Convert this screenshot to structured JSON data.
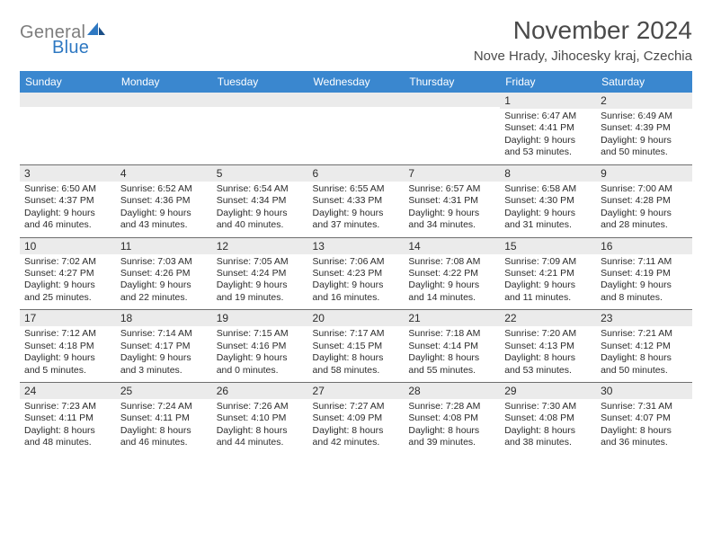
{
  "logo": {
    "word1": "General",
    "word2": "Blue"
  },
  "title": "November 2024",
  "location": "Nove Hrady, Jihocesky kraj, Czechia",
  "header_bg": "#3a87cf",
  "grid_bg": "#ebebeb",
  "text_color": "#2b2b2b",
  "weekdays": [
    "Sunday",
    "Monday",
    "Tuesday",
    "Wednesday",
    "Thursday",
    "Friday",
    "Saturday"
  ],
  "weeks": [
    [
      null,
      null,
      null,
      null,
      null,
      {
        "d": "1",
        "sr": "Sunrise: 6:47 AM",
        "ss": "Sunset: 4:41 PM",
        "dl1": "Daylight: 9 hours",
        "dl2": "and 53 minutes."
      },
      {
        "d": "2",
        "sr": "Sunrise: 6:49 AM",
        "ss": "Sunset: 4:39 PM",
        "dl1": "Daylight: 9 hours",
        "dl2": "and 50 minutes."
      }
    ],
    [
      {
        "d": "3",
        "sr": "Sunrise: 6:50 AM",
        "ss": "Sunset: 4:37 PM",
        "dl1": "Daylight: 9 hours",
        "dl2": "and 46 minutes."
      },
      {
        "d": "4",
        "sr": "Sunrise: 6:52 AM",
        "ss": "Sunset: 4:36 PM",
        "dl1": "Daylight: 9 hours",
        "dl2": "and 43 minutes."
      },
      {
        "d": "5",
        "sr": "Sunrise: 6:54 AM",
        "ss": "Sunset: 4:34 PM",
        "dl1": "Daylight: 9 hours",
        "dl2": "and 40 minutes."
      },
      {
        "d": "6",
        "sr": "Sunrise: 6:55 AM",
        "ss": "Sunset: 4:33 PM",
        "dl1": "Daylight: 9 hours",
        "dl2": "and 37 minutes."
      },
      {
        "d": "7",
        "sr": "Sunrise: 6:57 AM",
        "ss": "Sunset: 4:31 PM",
        "dl1": "Daylight: 9 hours",
        "dl2": "and 34 minutes."
      },
      {
        "d": "8",
        "sr": "Sunrise: 6:58 AM",
        "ss": "Sunset: 4:30 PM",
        "dl1": "Daylight: 9 hours",
        "dl2": "and 31 minutes."
      },
      {
        "d": "9",
        "sr": "Sunrise: 7:00 AM",
        "ss": "Sunset: 4:28 PM",
        "dl1": "Daylight: 9 hours",
        "dl2": "and 28 minutes."
      }
    ],
    [
      {
        "d": "10",
        "sr": "Sunrise: 7:02 AM",
        "ss": "Sunset: 4:27 PM",
        "dl1": "Daylight: 9 hours",
        "dl2": "and 25 minutes."
      },
      {
        "d": "11",
        "sr": "Sunrise: 7:03 AM",
        "ss": "Sunset: 4:26 PM",
        "dl1": "Daylight: 9 hours",
        "dl2": "and 22 minutes."
      },
      {
        "d": "12",
        "sr": "Sunrise: 7:05 AM",
        "ss": "Sunset: 4:24 PM",
        "dl1": "Daylight: 9 hours",
        "dl2": "and 19 minutes."
      },
      {
        "d": "13",
        "sr": "Sunrise: 7:06 AM",
        "ss": "Sunset: 4:23 PM",
        "dl1": "Daylight: 9 hours",
        "dl2": "and 16 minutes."
      },
      {
        "d": "14",
        "sr": "Sunrise: 7:08 AM",
        "ss": "Sunset: 4:22 PM",
        "dl1": "Daylight: 9 hours",
        "dl2": "and 14 minutes."
      },
      {
        "d": "15",
        "sr": "Sunrise: 7:09 AM",
        "ss": "Sunset: 4:21 PM",
        "dl1": "Daylight: 9 hours",
        "dl2": "and 11 minutes."
      },
      {
        "d": "16",
        "sr": "Sunrise: 7:11 AM",
        "ss": "Sunset: 4:19 PM",
        "dl1": "Daylight: 9 hours",
        "dl2": "and 8 minutes."
      }
    ],
    [
      {
        "d": "17",
        "sr": "Sunrise: 7:12 AM",
        "ss": "Sunset: 4:18 PM",
        "dl1": "Daylight: 9 hours",
        "dl2": "and 5 minutes."
      },
      {
        "d": "18",
        "sr": "Sunrise: 7:14 AM",
        "ss": "Sunset: 4:17 PM",
        "dl1": "Daylight: 9 hours",
        "dl2": "and 3 minutes."
      },
      {
        "d": "19",
        "sr": "Sunrise: 7:15 AM",
        "ss": "Sunset: 4:16 PM",
        "dl1": "Daylight: 9 hours",
        "dl2": "and 0 minutes."
      },
      {
        "d": "20",
        "sr": "Sunrise: 7:17 AM",
        "ss": "Sunset: 4:15 PM",
        "dl1": "Daylight: 8 hours",
        "dl2": "and 58 minutes."
      },
      {
        "d": "21",
        "sr": "Sunrise: 7:18 AM",
        "ss": "Sunset: 4:14 PM",
        "dl1": "Daylight: 8 hours",
        "dl2": "and 55 minutes."
      },
      {
        "d": "22",
        "sr": "Sunrise: 7:20 AM",
        "ss": "Sunset: 4:13 PM",
        "dl1": "Daylight: 8 hours",
        "dl2": "and 53 minutes."
      },
      {
        "d": "23",
        "sr": "Sunrise: 7:21 AM",
        "ss": "Sunset: 4:12 PM",
        "dl1": "Daylight: 8 hours",
        "dl2": "and 50 minutes."
      }
    ],
    [
      {
        "d": "24",
        "sr": "Sunrise: 7:23 AM",
        "ss": "Sunset: 4:11 PM",
        "dl1": "Daylight: 8 hours",
        "dl2": "and 48 minutes."
      },
      {
        "d": "25",
        "sr": "Sunrise: 7:24 AM",
        "ss": "Sunset: 4:11 PM",
        "dl1": "Daylight: 8 hours",
        "dl2": "and 46 minutes."
      },
      {
        "d": "26",
        "sr": "Sunrise: 7:26 AM",
        "ss": "Sunset: 4:10 PM",
        "dl1": "Daylight: 8 hours",
        "dl2": "and 44 minutes."
      },
      {
        "d": "27",
        "sr": "Sunrise: 7:27 AM",
        "ss": "Sunset: 4:09 PM",
        "dl1": "Daylight: 8 hours",
        "dl2": "and 42 minutes."
      },
      {
        "d": "28",
        "sr": "Sunrise: 7:28 AM",
        "ss": "Sunset: 4:08 PM",
        "dl1": "Daylight: 8 hours",
        "dl2": "and 39 minutes."
      },
      {
        "d": "29",
        "sr": "Sunrise: 7:30 AM",
        "ss": "Sunset: 4:08 PM",
        "dl1": "Daylight: 8 hours",
        "dl2": "and 38 minutes."
      },
      {
        "d": "30",
        "sr": "Sunrise: 7:31 AM",
        "ss": "Sunset: 4:07 PM",
        "dl1": "Daylight: 8 hours",
        "dl2": "and 36 minutes."
      }
    ]
  ]
}
